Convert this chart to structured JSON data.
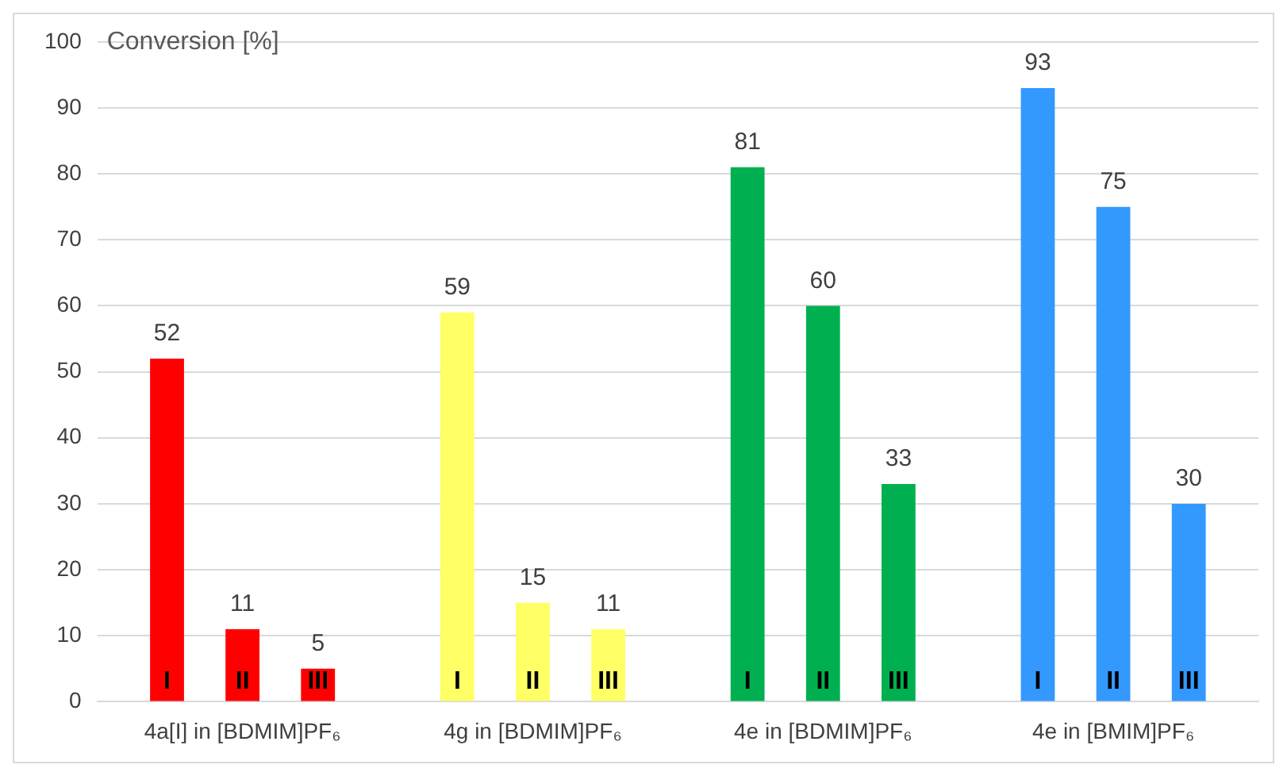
{
  "chart_data": {
    "type": "bar",
    "ylabel": "Conversion [%]",
    "categories": [
      "4a[I] in [BDMIM]PF₆",
      "4g in [BDMIM]PF₆",
      "4e in [BDMIM]PF₆",
      "4e in [BMIM]PF₆"
    ],
    "series": [
      {
        "name": "I",
        "colors": [
          "#ff0000",
          "#ffff66",
          "#00b050",
          "#3399ff"
        ],
        "values": [
          52,
          59,
          81,
          93
        ]
      },
      {
        "name": "II",
        "colors": [
          "#ff0000",
          "#ffff66",
          "#00b050",
          "#3399ff"
        ],
        "values": [
          11,
          15,
          60,
          75
        ]
      },
      {
        "name": "III",
        "colors": [
          "#ff0000",
          "#ffff66",
          "#00b050",
          "#3399ff"
        ],
        "values": [
          5,
          11,
          33,
          30
        ]
      }
    ],
    "ylim": [
      0,
      100
    ],
    "yticks": [
      0,
      10,
      20,
      30,
      40,
      50,
      60,
      70,
      80,
      90,
      100
    ],
    "grid": "y",
    "data_labels": true,
    "legend": false
  }
}
